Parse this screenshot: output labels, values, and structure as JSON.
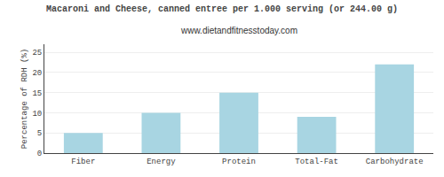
{
  "chart_data": {
    "type": "bar",
    "title": "Macaroni and Cheese, canned entree per 1.000 serving (or 244.00 g)",
    "subtitle": "www.dietandfitnesstoday.com",
    "categories": [
      "Fiber",
      "Energy",
      "Protein",
      "Total-Fat",
      "Carbohydrate"
    ],
    "values": [
      5,
      10,
      15,
      9,
      22
    ],
    "color": "#a8d5e2",
    "ylabel": "Percentage of RDH (%)",
    "ylim": [
      0,
      27
    ],
    "yticks": [
      0,
      5,
      10,
      15,
      20,
      25
    ],
    "grid": true
  }
}
